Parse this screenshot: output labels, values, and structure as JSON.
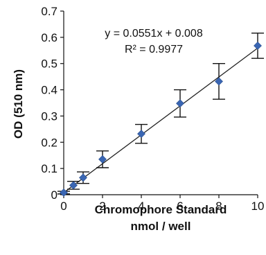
{
  "chart_data": {
    "type": "scatter",
    "title": "",
    "xlabel_line1": "Chromophore Standard",
    "xlabel_line2": "nmol / well",
    "ylabel": "OD (510 nm)",
    "xlim": [
      0,
      10
    ],
    "ylim": [
      0,
      0.7
    ],
    "x_ticks": [
      "0",
      "2",
      "4",
      "6",
      "8",
      "10"
    ],
    "y_ticks": [
      "0",
      "0.1",
      "0.2",
      "0.3",
      "0.4",
      "0.5",
      "0.6",
      "0.7"
    ],
    "grid": false,
    "marker_color": "#3a66b3",
    "points": [
      {
        "x": 0,
        "y": 0.008,
        "err": 0.005
      },
      {
        "x": 0.5,
        "y": 0.036,
        "err": 0.015
      },
      {
        "x": 1,
        "y": 0.065,
        "err": 0.022
      },
      {
        "x": 2,
        "y": 0.135,
        "err": 0.032
      },
      {
        "x": 4,
        "y": 0.232,
        "err": 0.036
      },
      {
        "x": 6,
        "y": 0.348,
        "err": 0.052
      },
      {
        "x": 8,
        "y": 0.432,
        "err": 0.068
      },
      {
        "x": 10,
        "y": 0.568,
        "err": 0.048
      }
    ],
    "trendline": {
      "slope": 0.0551,
      "intercept": 0.008
    },
    "annotations": {
      "equation": "y = 0.0551x + 0.008",
      "r_squared": "R² = 0.9977"
    }
  }
}
